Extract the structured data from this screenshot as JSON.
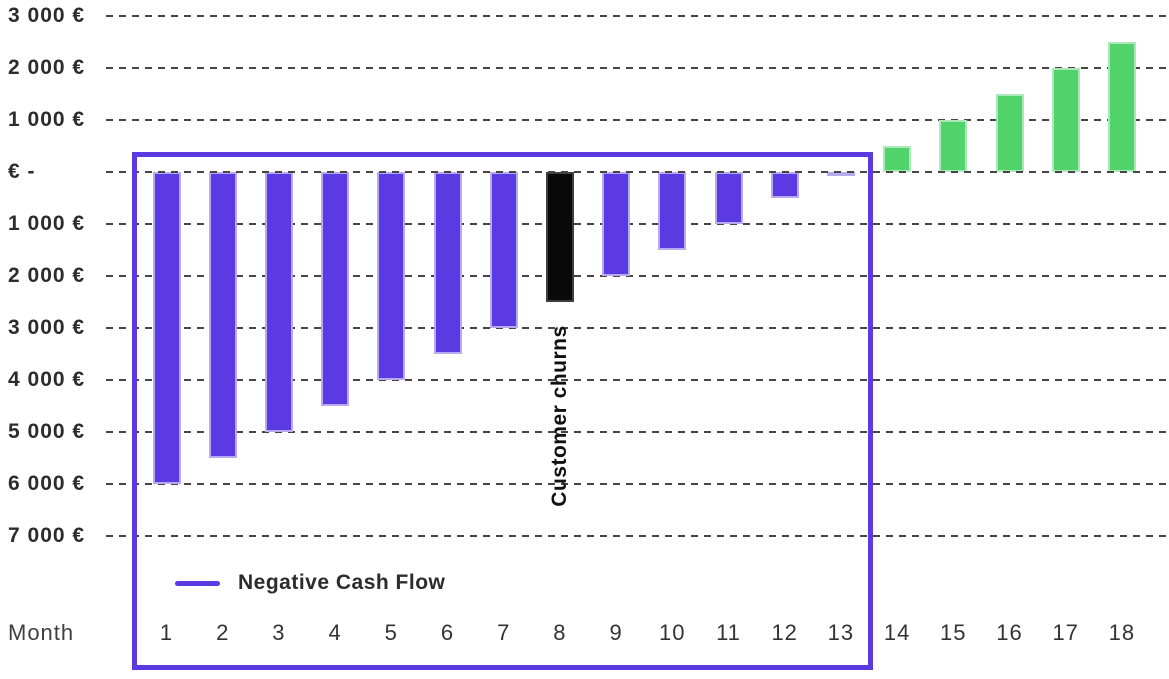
{
  "chart_data": {
    "type": "bar",
    "title": "",
    "xlabel": "Month",
    "ylabel": "",
    "categories": [
      "1",
      "2",
      "3",
      "4",
      "5",
      "6",
      "7",
      "8",
      "9",
      "10",
      "11",
      "12",
      "13",
      "14",
      "15",
      "16",
      "17",
      "18"
    ],
    "values": [
      -6000,
      -5500,
      -5000,
      -4500,
      -4000,
      -3500,
      -3000,
      -2500,
      -2000,
      -1500,
      -1000,
      -500,
      -50,
      500,
      1000,
      1500,
      2000,
      2500
    ],
    "bar_roles": [
      "negative",
      "negative",
      "negative",
      "negative",
      "negative",
      "negative",
      "negative",
      "churn",
      "negative",
      "negative",
      "negative",
      "negative",
      "negative",
      "positive",
      "positive",
      "positive",
      "positive",
      "positive"
    ],
    "y_ticks": [
      {
        "label": "3 000 €",
        "value": 3000
      },
      {
        "label": "2 000 €",
        "value": 2000
      },
      {
        "label": "1 000 €",
        "value": 1000
      },
      {
        "label": "€ -",
        "value": 0
      },
      {
        "label": "1 000 €",
        "value": -1000
      },
      {
        "label": "2 000 €",
        "value": -2000
      },
      {
        "label": "3 000 €",
        "value": -3000
      },
      {
        "label": "4 000 €",
        "value": -4000
      },
      {
        "label": "5 000 €",
        "value": -5000
      },
      {
        "label": "6 000 €",
        "value": -6000
      },
      {
        "label": "7 000 €",
        "value": -7000
      }
    ],
    "ylim": [
      -7000,
      3000
    ],
    "grid": "horizontal-dashed",
    "legend": {
      "position": "inside-box-bottom-left",
      "items": [
        {
          "label": "Negative Cash Flow",
          "color": "#5b3ae4"
        }
      ]
    },
    "annotations": [
      {
        "text": "Customer churns",
        "month": 8,
        "rotation": -90
      }
    ],
    "highlight_box": {
      "from_month": 1,
      "to_month": 13,
      "color": "#5b3ae4"
    }
  },
  "colors": {
    "negative_bar": "#5b3ae4",
    "negative_bar_edge": "#b7aaf1",
    "churn_bar": "#0a0a0a",
    "churn_bar_edge": "#3f3f3f",
    "positive_bar": "#4fd36a",
    "positive_bar_edge": "#abe9ba",
    "grid": "#454545",
    "box": "#5b3ae4",
    "text": "#2c2c2c"
  }
}
